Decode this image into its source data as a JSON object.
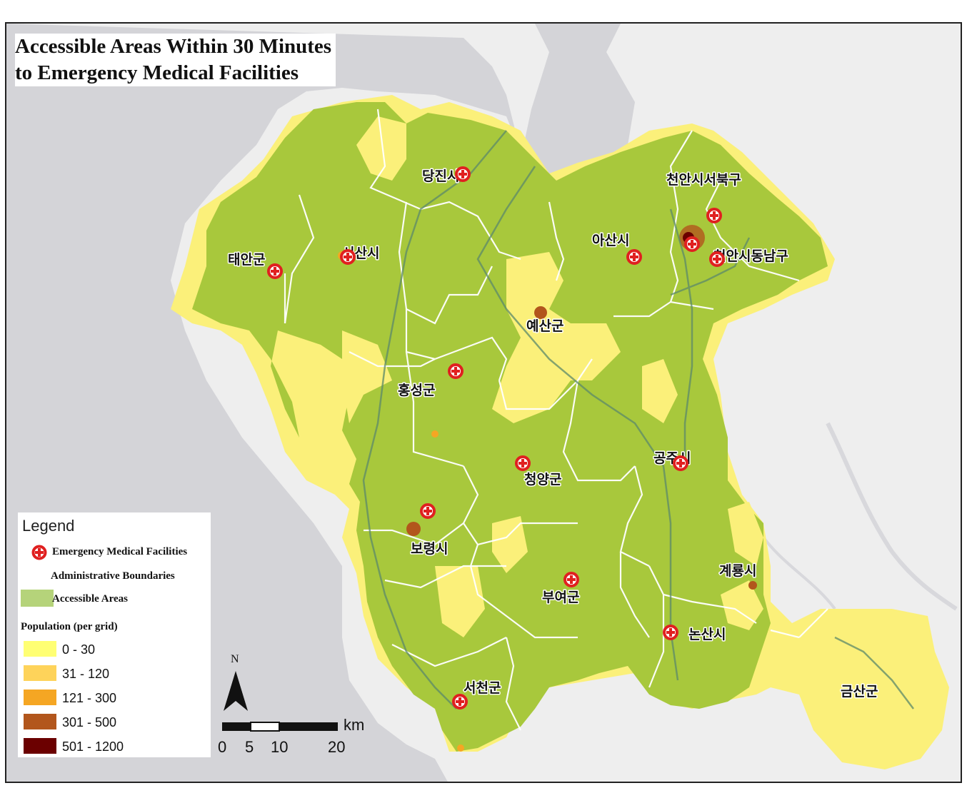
{
  "title": {
    "line1": "Accessible Areas Within 30 Minutes",
    "line2": "to Emergency Medical Facilities"
  },
  "places": [
    {
      "name": "당진시",
      "marker": true
    },
    {
      "name": "천안시서북구",
      "marker": true
    },
    {
      "name": "아산시",
      "marker": true
    },
    {
      "name": "천안시동남구",
      "marker": true
    },
    {
      "name": "태안군",
      "marker": true
    },
    {
      "name": "서산시",
      "marker": true
    },
    {
      "name": "예산군",
      "marker": false
    },
    {
      "name": "홍성군",
      "marker": true
    },
    {
      "name": "공주시",
      "marker": true
    },
    {
      "name": "청양군",
      "marker": true
    },
    {
      "name": "보령시",
      "marker": true
    },
    {
      "name": "계룡시",
      "marker": false
    },
    {
      "name": "부여군",
      "marker": true
    },
    {
      "name": "논산시",
      "marker": true
    },
    {
      "name": "서천군",
      "marker": true
    },
    {
      "name": "금산군",
      "marker": false
    }
  ],
  "legend": {
    "title": "Legend",
    "facilities_label": "Emergency Medical Facilities",
    "boundaries_label": "Administrative Boundaries",
    "accessible_label": "Accessible Areas",
    "accessible_color": "#b5d37a",
    "population_title": "Population (per grid)",
    "population_classes": [
      {
        "range": "0  -  30",
        "color": "#ffff73"
      },
      {
        "range": "31  -  120",
        "color": "#fed35a"
      },
      {
        "range": "121  -  300",
        "color": "#f5a623"
      },
      {
        "range": "301  -  500",
        "color": "#b2561c"
      },
      {
        "range": "501  -  1200",
        "color": "#6b0000"
      }
    ]
  },
  "north_arrow": {
    "label": "N",
    "icon": "north-arrow-icon"
  },
  "scale_bar": {
    "unit": "km",
    "ticks": [
      "0",
      "5",
      "10",
      "20"
    ]
  },
  "colors": {
    "sea": "#d4d4d8",
    "land": "#eeeeee",
    "province_fill": "#a8c83c",
    "marker": "#e02020"
  }
}
